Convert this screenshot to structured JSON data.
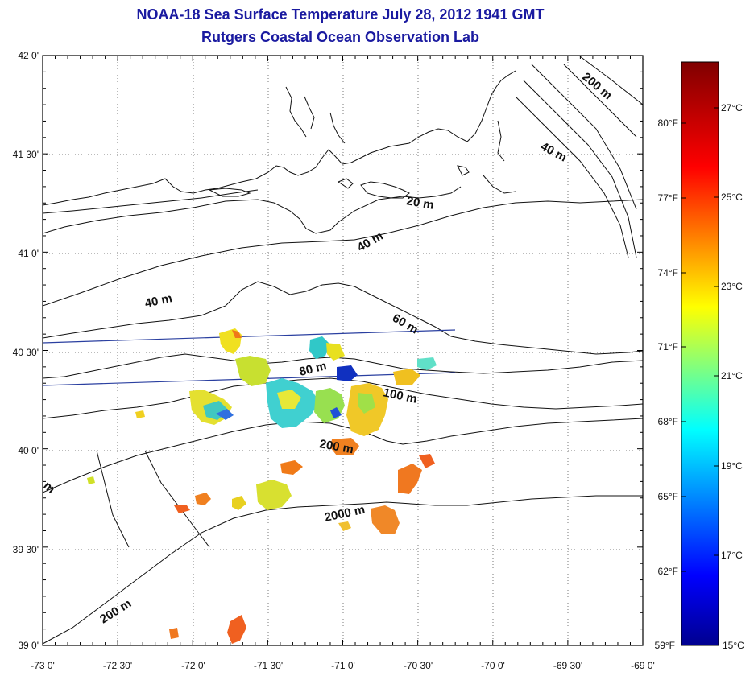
{
  "header": {
    "title": "NOAA-18 Sea Surface Temperature July 28, 2012 1941 GMT",
    "subtitle": "Rutgers Coastal Ocean Observation Lab"
  },
  "map": {
    "lon_range": [
      -73,
      -69
    ],
    "lat_range": [
      39,
      42
    ],
    "lat_labels": [
      "42 0'",
      "41 30'",
      "41 0'",
      "40 30'",
      "40 0'",
      "39 30'",
      "39 0'"
    ],
    "lon_labels": [
      "-73 0'",
      "-72 30'",
      "-72 0'",
      "-71 30'",
      "-71 0'",
      "-70 30'",
      "-70 0'",
      "-69 30'",
      "-69 0'"
    ],
    "contour_labels": [
      "200 m",
      "40 m",
      "20 m",
      "40 m",
      "40 m",
      "60 m",
      "80 m",
      "100 m",
      "200 m",
      "2000 m",
      "200 m",
      "m"
    ]
  },
  "colorbar": {
    "celsius_labels": [
      "27°C",
      "25°C",
      "23°C",
      "21°C",
      "19°C",
      "17°C",
      "15°C"
    ],
    "fahrenheit_labels": [
      "80°F",
      "77°F",
      "74°F",
      "71°F",
      "68°F",
      "65°F",
      "62°F",
      "59°F"
    ],
    "range_c": [
      15,
      28
    ],
    "colors": [
      "#00008f",
      "#0000ff",
      "#00ffff",
      "#ffff00",
      "#ff0000",
      "#800000"
    ]
  }
}
